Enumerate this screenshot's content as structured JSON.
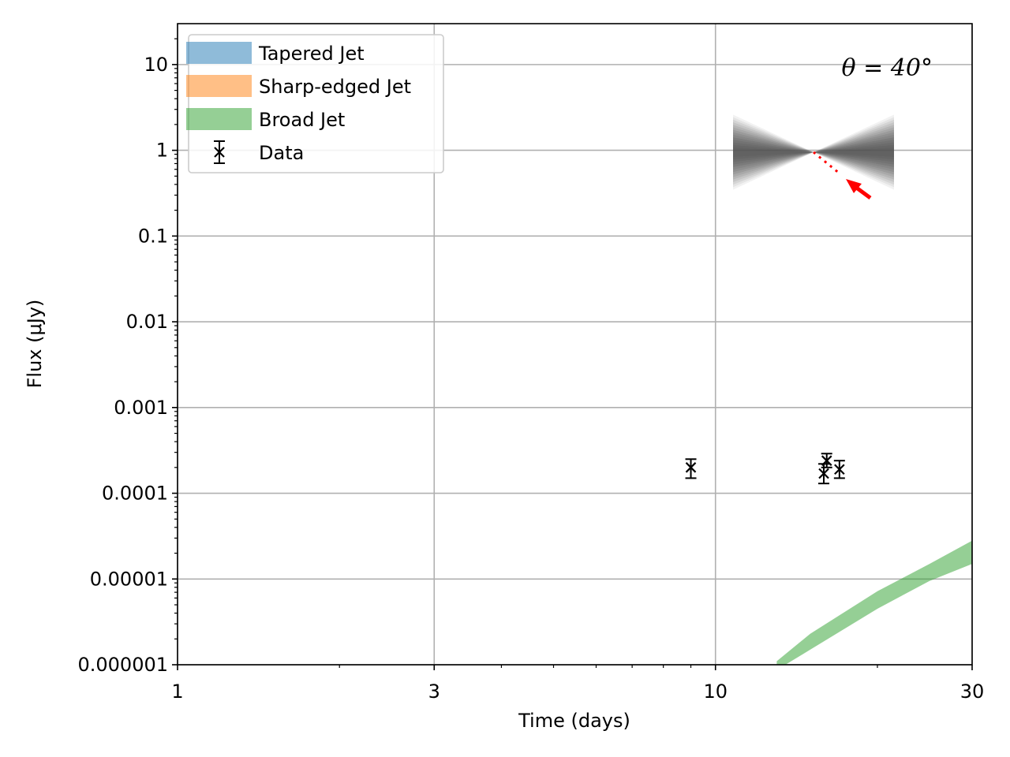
{
  "chart_data": {
    "type": "line",
    "xlabel": "Time (days)",
    "ylabel": "Flux (μJy)",
    "xscale": "log",
    "yscale": "log",
    "xlim": [
      1,
      30
    ],
    "ylim": [
      1e-06,
      30
    ],
    "grid": true,
    "x_ticks": [
      {
        "value": 1,
        "label": "1"
      },
      {
        "value": 3,
        "label": "3"
      },
      {
        "value": 10,
        "label": "10"
      },
      {
        "value": 30,
        "label": "30"
      }
    ],
    "y_ticks": [
      {
        "value": 1e-06,
        "label": "0.000001"
      },
      {
        "value": 1e-05,
        "label": "0.00001"
      },
      {
        "value": 0.0001,
        "label": "0.0001"
      },
      {
        "value": 0.001,
        "label": "0.001"
      },
      {
        "value": 0.01,
        "label": "0.01"
      },
      {
        "value": 0.1,
        "label": "0.1"
      },
      {
        "value": 1,
        "label": "1"
      },
      {
        "value": 10,
        "label": "10"
      }
    ],
    "legend": {
      "position": "upper-left",
      "entries": [
        {
          "label": "Tapered Jet",
          "color": "#1f77b4",
          "kind": "band"
        },
        {
          "label": "Sharp-edged Jet",
          "color": "#ff7f0e",
          "kind": "band"
        },
        {
          "label": "Broad Jet",
          "color": "#2ca02c",
          "kind": "band"
        },
        {
          "label": "Data",
          "color": "#000000",
          "kind": "errorbar"
        }
      ]
    },
    "series": [
      {
        "name": "Broad Jet",
        "kind": "band",
        "color": "#2ca02c",
        "opacity": 0.5,
        "x": [
          13.0,
          15.0,
          20.0,
          25.0,
          30.0
        ],
        "lower": [
          8.7e-07,
          1.5e-06,
          4.5e-06,
          9.5e-06,
          1.5e-05
        ],
        "upper": [
          1.1e-06,
          2.3e-06,
          7.2e-06,
          1.5e-05,
          2.8e-05
        ]
      },
      {
        "name": "Data",
        "kind": "errorbar",
        "color": "#000000",
        "marker": "x",
        "points": [
          {
            "x": 9.0,
            "y": 0.0002,
            "ylow": 0.00015,
            "yhigh": 0.00025
          },
          {
            "x": 15.9,
            "y": 0.00017,
            "ylow": 0.00013,
            "yhigh": 0.00022
          },
          {
            "x": 16.1,
            "y": 0.00024,
            "ylow": 0.0002,
            "yhigh": 0.00029
          },
          {
            "x": 17.0,
            "y": 0.00019,
            "ylow": 0.00015,
            "yhigh": 0.00024
          }
        ]
      }
    ],
    "annotation": {
      "text": "θ = 40°",
      "position": "upper-right"
    },
    "inset": {
      "kind": "jet-cone-diagram",
      "position": "upper-right",
      "cone_color": "#555555",
      "arrow_color": "#ff0000",
      "viewing_angle_deg": 40
    }
  }
}
